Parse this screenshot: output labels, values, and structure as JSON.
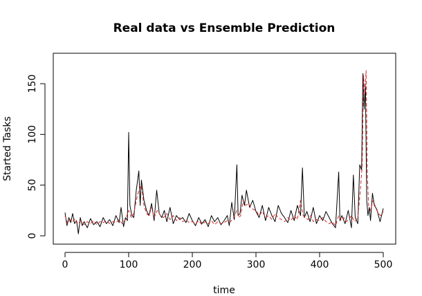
{
  "chart_data": {
    "type": "line",
    "title": "Real data vs Ensemble Prediction",
    "xlabel": "time",
    "ylabel": "Started Tasks",
    "xlim": [
      0,
      500
    ],
    "ylim": [
      0,
      165
    ],
    "xticks": [
      0,
      100,
      200,
      300,
      400,
      500
    ],
    "yticks": [
      0,
      50,
      100,
      150
    ],
    "grid": false,
    "legend": "none",
    "series": [
      {
        "color": "#000000",
        "dash": "solid",
        "x": [
          0,
          3,
          6,
          9,
          12,
          15,
          18,
          21,
          24,
          27,
          30,
          35,
          40,
          45,
          50,
          55,
          60,
          65,
          70,
          75,
          80,
          85,
          88,
          92,
          95,
          98,
          100,
          102,
          105,
          108,
          112,
          116,
          118,
          120,
          124,
          128,
          132,
          136,
          140,
          144,
          148,
          152,
          156,
          160,
          165,
          170,
          175,
          180,
          185,
          190,
          195,
          200,
          205,
          210,
          215,
          220,
          225,
          230,
          235,
          240,
          245,
          250,
          255,
          258,
          262,
          266,
          270,
          272,
          275,
          278,
          282,
          285,
          290,
          295,
          300,
          305,
          310,
          315,
          320,
          325,
          330,
          335,
          340,
          345,
          350,
          355,
          360,
          365,
          370,
          373,
          376,
          380,
          385,
          390,
          395,
          400,
          405,
          410,
          415,
          420,
          425,
          430,
          432,
          435,
          440,
          445,
          450,
          453,
          456,
          460,
          463,
          466,
          468,
          470,
          472,
          474,
          476,
          478,
          480,
          483,
          486,
          490,
          495,
          500
        ],
        "y": [
          23,
          10,
          18,
          13,
          22,
          12,
          15,
          2,
          18,
          10,
          14,
          8,
          17,
          11,
          14,
          9,
          18,
          12,
          16,
          10,
          20,
          13,
          28,
          9,
          18,
          15,
          102,
          30,
          20,
          18,
          45,
          64,
          30,
          55,
          35,
          25,
          20,
          32,
          15,
          45,
          22,
          18,
          25,
          14,
          28,
          12,
          20,
          16,
          18,
          13,
          22,
          15,
          10,
          18,
          12,
          16,
          9,
          20,
          14,
          18,
          11,
          15,
          20,
          10,
          33,
          16,
          70,
          20,
          22,
          40,
          30,
          45,
          28,
          35,
          24,
          18,
          30,
          15,
          28,
          20,
          14,
          30,
          22,
          18,
          13,
          25,
          15,
          30,
          20,
          67,
          18,
          24,
          14,
          28,
          12,
          20,
          15,
          24,
          18,
          12,
          8,
          63,
          15,
          20,
          12,
          25,
          8,
          60,
          18,
          12,
          70,
          65,
          160,
          125,
          150,
          35,
          20,
          28,
          15,
          42,
          30,
          26,
          14,
          27
        ]
      },
      {
        "color": "#d62728",
        "dash": "dashed",
        "x": [
          0,
          4,
          8,
          12,
          16,
          20,
          25,
          30,
          35,
          40,
          45,
          50,
          55,
          60,
          65,
          70,
          75,
          80,
          85,
          90,
          95,
          100,
          104,
          108,
          112,
          116,
          120,
          124,
          128,
          132,
          136,
          140,
          145,
          150,
          155,
          160,
          165,
          170,
          175,
          180,
          185,
          190,
          195,
          200,
          205,
          210,
          215,
          220,
          225,
          230,
          235,
          240,
          245,
          250,
          255,
          260,
          265,
          270,
          273,
          276,
          280,
          284,
          288,
          292,
          296,
          300,
          305,
          310,
          315,
          320,
          325,
          330,
          335,
          340,
          345,
          350,
          355,
          360,
          365,
          370,
          374,
          378,
          382,
          386,
          390,
          395,
          400,
          405,
          410,
          415,
          420,
          425,
          430,
          434,
          438,
          442,
          446,
          450,
          455,
          460,
          464,
          467,
          469,
          471,
          473,
          475,
          477,
          480,
          484,
          488,
          492,
          496,
          500
        ],
        "y": [
          20,
          12,
          16,
          14,
          17,
          12,
          15,
          11,
          14,
          12,
          15,
          11,
          14,
          13,
          15,
          12,
          14,
          13,
          16,
          12,
          16,
          25,
          18,
          22,
          35,
          45,
          50,
          30,
          22,
          20,
          28,
          18,
          25,
          20,
          18,
          22,
          16,
          20,
          15,
          18,
          14,
          16,
          13,
          14,
          12,
          15,
          11,
          14,
          12,
          15,
          11,
          14,
          12,
          13,
          15,
          14,
          18,
          25,
          18,
          20,
          35,
          30,
          32,
          28,
          26,
          25,
          20,
          24,
          18,
          20,
          16,
          22,
          18,
          16,
          14,
          18,
          15,
          20,
          16,
          35,
          20,
          18,
          16,
          20,
          14,
          16,
          15,
          18,
          14,
          12,
          14,
          10,
          20,
          15,
          18,
          14,
          16,
          20,
          14,
          18,
          45,
          70,
          158,
          140,
          163,
          60,
          30,
          25,
          35,
          28,
          22,
          20,
          24
        ]
      }
    ]
  }
}
